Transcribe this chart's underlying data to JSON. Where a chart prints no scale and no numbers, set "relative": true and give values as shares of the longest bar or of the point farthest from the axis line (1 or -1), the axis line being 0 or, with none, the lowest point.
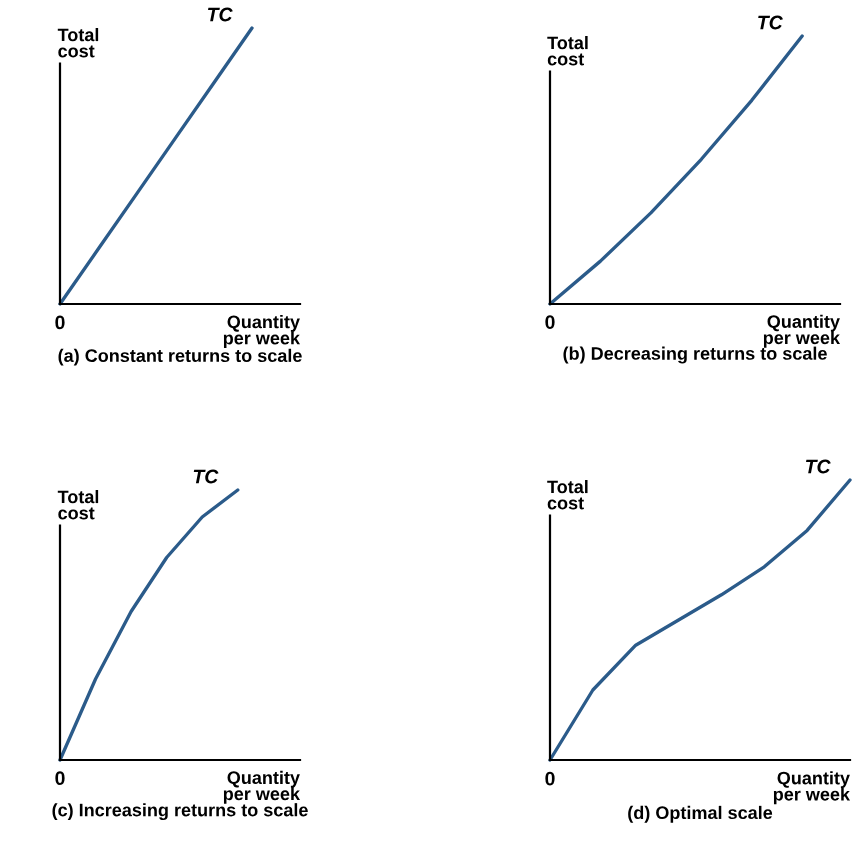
{
  "chart_data": [
    {
      "type": "line",
      "title": "(a) Constant returns to scale",
      "xlabel": "Quantity\nper week",
      "ylabel": "Total\ncost",
      "relative": true,
      "annotations": [
        "0"
      ],
      "categories": [
        null,
        null,
        null,
        null,
        null,
        null
      ],
      "series": [
        {
          "name": "TC",
          "color": "#2b5b8a",
          "values": [
            0,
            0.2,
            0.4,
            0.6,
            0.8,
            1
          ]
        }
      ]
    },
    {
      "type": "line",
      "title": "(b) Decreasing returns to scale",
      "xlabel": "Quantity\nper week",
      "ylabel": "Total\ncost",
      "relative": true,
      "annotations": [
        "0"
      ],
      "categories": [
        null,
        null,
        null,
        null,
        null,
        null
      ],
      "series": [
        {
          "name": "TC",
          "color": "#2b5b8a",
          "values": [
            0,
            0.16,
            0.34,
            0.54,
            0.76,
            1
          ]
        }
      ]
    },
    {
      "type": "line",
      "title": "(c) Increasing returns to scale",
      "xlabel": "Quantity\nper week",
      "ylabel": "Total\ncost",
      "relative": true,
      "annotations": [
        "0"
      ],
      "categories": [
        null,
        null,
        null,
        null,
        null,
        null
      ],
      "series": [
        {
          "name": "TC",
          "color": "#2b5b8a",
          "values": [
            0,
            0.3,
            0.55,
            0.75,
            0.9,
            1
          ]
        }
      ]
    },
    {
      "type": "line",
      "title": "(d) Optimal scale",
      "xlabel": "Quantity\nper week",
      "ylabel": "Total\ncost",
      "relative": true,
      "annotations": [
        "0"
      ],
      "categories": [
        null,
        null,
        null,
        null,
        null,
        null,
        null,
        null
      ],
      "series": [
        {
          "name": "TC",
          "color": "#2b5b8a",
          "values": [
            0,
            0.25,
            0.41,
            0.5,
            0.59,
            0.69,
            0.82,
            1
          ]
        }
      ]
    }
  ]
}
